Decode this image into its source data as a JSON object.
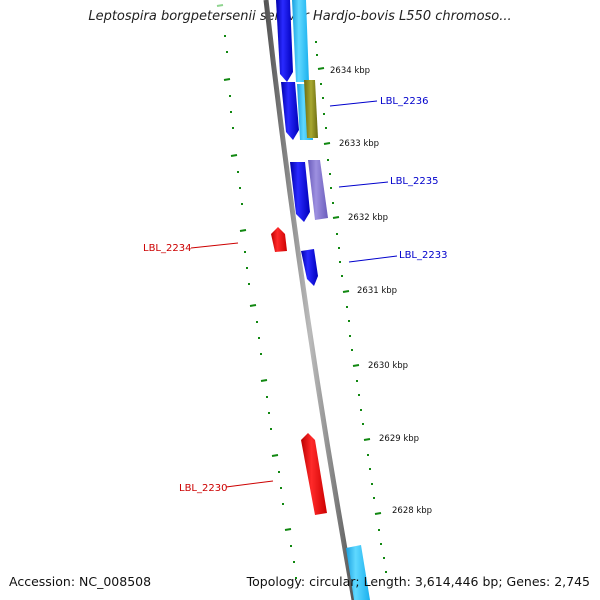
{
  "title": "Leptospira borgpetersenii serovar Hardjo-bovis L550 chromoso...",
  "footer": {
    "accession": "Accession: NC_008508",
    "stats": "Topology: circular; Length: 3,614,446 bp; Genes: 2,745"
  },
  "tick_labels": [
    "2634 kbp",
    "2633 kbp",
    "2632 kbp",
    "2631 kbp",
    "2630 kbp",
    "2629 kbp",
    "2628 kbp"
  ],
  "gene_labels": [
    {
      "text": "LBL_2236",
      "strand": "forward",
      "color": "#0000cc"
    },
    {
      "text": "LBL_2235",
      "strand": "forward",
      "color": "#0000cc"
    },
    {
      "text": "LBL_2234",
      "strand": "reverse",
      "color": "#cc0000"
    },
    {
      "text": "LBL_2233",
      "strand": "forward",
      "color": "#0000cc"
    },
    {
      "text": "LBL_2230",
      "strand": "reverse",
      "color": "#cc0000"
    }
  ],
  "colors": {
    "forward_gene": "#0000ee",
    "reverse_gene": "#ee0000",
    "cds_feature": "#33ccff",
    "misc_feature": "#8877cc",
    "other_feature": "#888822",
    "backbone": "#888888",
    "gc_ticks": "#118811",
    "scale_ticks": "#118811"
  }
}
